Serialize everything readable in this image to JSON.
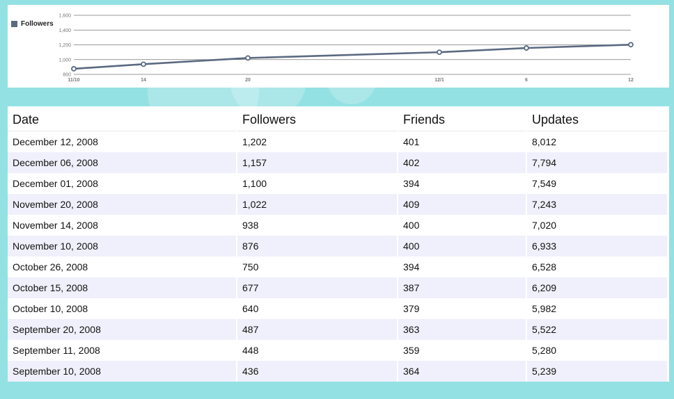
{
  "chart_data": {
    "type": "line",
    "x": [
      "11/10",
      "11/14",
      "11/20",
      "12/1",
      "12/6",
      "12/12"
    ],
    "series": [
      {
        "name": "Followers",
        "values": [
          876,
          938,
          1022,
          1100,
          1157,
          1202
        ],
        "color": "#5b6a82"
      }
    ],
    "x_tick_labels": [
      "11/10",
      "14",
      "20",
      "12/1",
      "6",
      "12"
    ],
    "y_ticks": [
      800,
      1000,
      1200,
      1400,
      1600
    ],
    "y_tick_labels": [
      "800",
      "1,000",
      "1,200",
      "1,400",
      "1,600"
    ],
    "ylim": [
      800,
      1600
    ],
    "grid": true,
    "legend": "left"
  },
  "legend": {
    "label": "Followers"
  },
  "table": {
    "headers": [
      "Date",
      "Followers",
      "Friends",
      "Updates"
    ],
    "rows": [
      [
        "December 12, 2008",
        "1,202",
        "401",
        "8,012"
      ],
      [
        "December 06, 2008",
        "1,157",
        "402",
        "7,794"
      ],
      [
        "December 01, 2008",
        "1,100",
        "394",
        "7,549"
      ],
      [
        "November 20, 2008",
        "1,022",
        "409",
        "7,243"
      ],
      [
        "November 14, 2008",
        "938",
        "400",
        "7,020"
      ],
      [
        "November 10, 2008",
        "876",
        "400",
        "6,933"
      ],
      [
        "October 26, 2008",
        "750",
        "394",
        "6,528"
      ],
      [
        "October 15, 2008",
        "677",
        "387",
        "6,209"
      ],
      [
        "October 10, 2008",
        "640",
        "379",
        "5,982"
      ],
      [
        "September 20, 2008",
        "487",
        "363",
        "5,522"
      ],
      [
        "September 11, 2008",
        "448",
        "359",
        "5,280"
      ],
      [
        "September 10, 2008",
        "436",
        "364",
        "5,239"
      ]
    ]
  }
}
